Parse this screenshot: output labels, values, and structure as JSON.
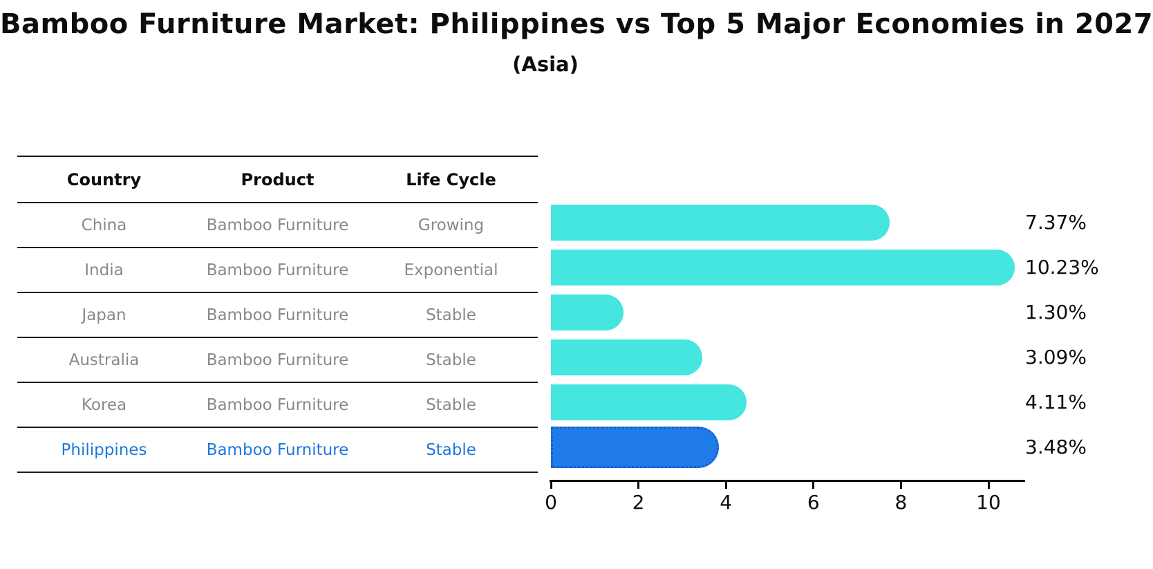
{
  "title": "Bamboo Furniture Market: Philippines vs Top 5 Major Economies in 2027",
  "subtitle": "(Asia)",
  "table": {
    "headers": [
      "Country",
      "Product",
      "Life Cycle"
    ],
    "rows": [
      {
        "country": "China",
        "product": "Bamboo Furniture",
        "life_cycle": "Growing",
        "highlight": false
      },
      {
        "country": "India",
        "product": "Bamboo Furniture",
        "life_cycle": "Exponential",
        "highlight": false
      },
      {
        "country": "Japan",
        "product": "Bamboo Furniture",
        "life_cycle": "Stable",
        "highlight": false
      },
      {
        "country": "Australia",
        "product": "Bamboo Furniture",
        "life_cycle": "Stable",
        "highlight": false
      },
      {
        "country": "Korea",
        "product": "Bamboo Furniture",
        "life_cycle": "Stable",
        "highlight": false
      },
      {
        "country": "Philippines",
        "product": "Bamboo Furniture",
        "life_cycle": "Stable",
        "highlight": true
      }
    ]
  },
  "chart_data": {
    "type": "bar",
    "orientation": "horizontal",
    "categories": [
      "China",
      "India",
      "Japan",
      "Australia",
      "Korea",
      "Philippines"
    ],
    "values": [
      7.37,
      10.23,
      1.3,
      3.09,
      4.11,
      3.48
    ],
    "value_labels": [
      "7.37%",
      "10.23%",
      "1.30%",
      "3.09%",
      "4.11%",
      "3.48%"
    ],
    "xticks": [
      "0",
      "2",
      "4",
      "6",
      "8",
      "10"
    ],
    "xlim": [
      0,
      10.85
    ],
    "grid": false,
    "legend": false,
    "bar_color": "#45E5E0",
    "highlight_bar_color": "#1E7BE8",
    "highlight_border_color": "#155FCC",
    "highlight_index": 5
  },
  "colors": {
    "text": "#0d0d0d",
    "muted_text": "#898989",
    "highlight_text": "#1E78DC",
    "background": "#ffffff"
  }
}
